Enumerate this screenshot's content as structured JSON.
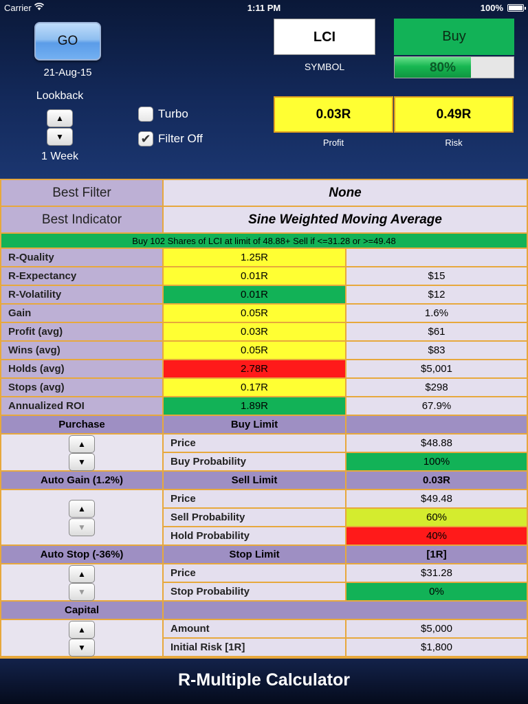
{
  "status_bar": {
    "carrier": "Carrier",
    "time": "1:11 PM",
    "battery": "100%"
  },
  "header": {
    "go_label": "GO",
    "date": "21-Aug-15",
    "lookback_label": "Lookback",
    "lookback_value": "1 Week",
    "turbo_label": "Turbo",
    "turbo_checked": false,
    "filter_label": "Filter Off",
    "filter_checked": true,
    "symbol_value": "LCI",
    "symbol_label": "SYMBOL",
    "buy_label": "Buy",
    "buy_probability": "80%",
    "buy_probability_fraction": 0.8,
    "profit_value": "0.03R",
    "profit_label": "Profit",
    "risk_value": "0.49R",
    "risk_label": "Risk"
  },
  "summary": {
    "best_filter_label": "Best Filter",
    "best_filter_value": "None",
    "best_indicator_label": "Best Indicator",
    "best_indicator_value": "Sine Weighted Moving Average",
    "instruction": "Buy 102 Shares of LCI at limit of 48.88+ Sell if <=31.28 or >=49.48"
  },
  "metrics": [
    {
      "label": "R-Quality",
      "r": "1.25R",
      "value": "",
      "color": "yellow"
    },
    {
      "label": "R-Expectancy",
      "r": "0.01R",
      "value": "$15",
      "color": "yellow"
    },
    {
      "label": "R-Volatility",
      "r": "0.01R",
      "value": "$12",
      "color": "green"
    },
    {
      "label": "Gain",
      "r": "0.05R",
      "value": "1.6%",
      "color": "yellow"
    },
    {
      "label": "Profit (avg)",
      "r": "0.03R",
      "value": "$61",
      "color": "yellow"
    },
    {
      "label": "Wins (avg)",
      "r": "0.05R",
      "value": "$83",
      "color": "yellow"
    },
    {
      "label": "Holds (avg)",
      "r": "2.78R",
      "value": "$5,001",
      "color": "red"
    },
    {
      "label": "Stops (avg)",
      "r": "0.17R",
      "value": "$298",
      "color": "yellow"
    },
    {
      "label": "Annualized ROI",
      "r": "1.89R",
      "value": "67.9%",
      "color": "green"
    }
  ],
  "purchase": {
    "title": "Purchase",
    "header": "Buy Limit",
    "header_value": "",
    "rows": [
      {
        "label": "Price",
        "value": "$48.88"
      },
      {
        "label": "Buy Probability",
        "value": "100%"
      }
    ]
  },
  "auto_gain": {
    "title": "Auto Gain (1.2%)",
    "header": "Sell Limit",
    "header_value": "0.03R",
    "rows": [
      {
        "label": "Price",
        "value": "$49.48"
      },
      {
        "label": "Sell Probability",
        "value": "60%"
      },
      {
        "label": "Hold Probability",
        "value": "40%"
      }
    ]
  },
  "auto_stop": {
    "title": "Auto Stop (-36%)",
    "header": "Stop Limit",
    "header_value": "[1R]",
    "rows": [
      {
        "label": "Price",
        "value": "$31.28"
      },
      {
        "label": "Stop Probability",
        "value": "0%"
      }
    ]
  },
  "capital": {
    "title": "Capital",
    "rows": [
      {
        "label": "Amount",
        "value": "$5,000"
      },
      {
        "label": "Initial Risk [1R]",
        "value": "$1,800"
      }
    ]
  },
  "footer": {
    "title": "R-Multiple Calculator"
  },
  "icons": {
    "up": "▲",
    "down": "▼",
    "check": "✔"
  },
  "colors": {
    "green": "#12b257",
    "yellow": "#ffff33",
    "red": "#ff1a1a",
    "lime": "#d4ec2e",
    "lavender": "#bdb0d5",
    "purple": "#9e8fc3"
  }
}
